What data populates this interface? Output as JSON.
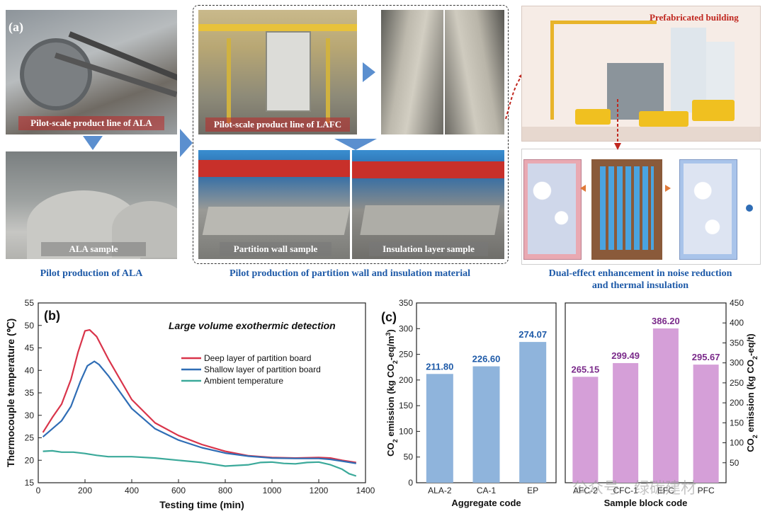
{
  "panel_a": {
    "tag": "(a)",
    "labels": {
      "ala_line": "Pilot-scale product line of ALA",
      "ala_sample": "ALA sample",
      "lafc_line": "Pilot-scale product line of LAFC",
      "partition_sample": "Partition wall sample",
      "insulation_sample": "Insulation layer sample",
      "prefab": "Prefabricated building"
    },
    "captions": {
      "ala": "Pilot production of ALA",
      "partition": "Pilot production of partition wall and insulation material",
      "dual_1": "Dual-effect enhancement in noise reduction",
      "dual_2": "and thermal insulation"
    }
  },
  "watermark": "公众号 · 绿碳建材",
  "chart_data": [
    {
      "type": "line",
      "tag": "(b)",
      "title": "Large volume exothermic detection",
      "xlabel": "Testing time (min)",
      "ylabel": "Thermocouple temperature (℃)",
      "xlim": [
        0,
        1400
      ],
      "ylim": [
        15,
        55
      ],
      "xticks": [
        0,
        200,
        400,
        600,
        800,
        1000,
        1200,
        1400
      ],
      "yticks": [
        15,
        20,
        25,
        30,
        35,
        40,
        45,
        50,
        55
      ],
      "legend": "upper-right",
      "series": [
        {
          "name": "Deep layer of partition board",
          "color": "#d9344a",
          "x": [
            20,
            60,
            100,
            140,
            170,
            200,
            220,
            250,
            300,
            400,
            500,
            600,
            700,
            800,
            900,
            1000,
            1100,
            1200,
            1250,
            1300,
            1360
          ],
          "y": [
            26.2,
            29.5,
            32.5,
            38,
            44,
            48.8,
            49,
            47.5,
            42.5,
            33.5,
            28.3,
            25.5,
            23.5,
            22,
            21,
            20.6,
            20.5,
            20.6,
            20.5,
            20,
            19.5
          ]
        },
        {
          "name": "Shallow layer of partition board",
          "color": "#2f6db5",
          "x": [
            20,
            60,
            100,
            140,
            180,
            210,
            240,
            260,
            300,
            400,
            500,
            600,
            700,
            800,
            900,
            1000,
            1100,
            1200,
            1250,
            1300,
            1360
          ],
          "y": [
            25.2,
            27,
            28.8,
            32,
            37.5,
            41,
            42,
            41.3,
            38.8,
            31.5,
            27,
            24.5,
            22.8,
            21.6,
            20.9,
            20.5,
            20.4,
            20.4,
            20.2,
            19.8,
            19.3
          ]
        },
        {
          "name": "Ambient temperature",
          "color": "#3ba99a",
          "x": [
            20,
            60,
            100,
            150,
            200,
            250,
            300,
            400,
            500,
            600,
            700,
            800,
            900,
            950,
            1000,
            1050,
            1100,
            1150,
            1200,
            1250,
            1300,
            1330,
            1360
          ],
          "y": [
            22,
            22.1,
            21.8,
            21.8,
            21.5,
            21.1,
            20.8,
            20.8,
            20.5,
            20,
            19.5,
            18.7,
            19,
            19.5,
            19.6,
            19.3,
            19.2,
            19.5,
            19.6,
            19,
            18,
            17,
            16.5
          ]
        }
      ]
    },
    {
      "type": "bar",
      "tag": "(c)",
      "xlabel": "Aggregate code",
      "ylabel": "CO2 emission (kg CO2-eq/m3)",
      "ylim": [
        0,
        350
      ],
      "yticks": [
        0,
        50,
        100,
        150,
        200,
        250,
        300,
        350
      ],
      "categories": [
        "ALA-2",
        "CA-1",
        "EP"
      ],
      "values": [
        211.8,
        226.6,
        274.07
      ],
      "labels": [
        "211.80",
        "226.60",
        "274.07"
      ],
      "color": "#8fb4dc",
      "label_color": "#1e5aa8"
    },
    {
      "type": "bar",
      "xlabel": "Sample block code",
      "ylabel": "CO2 emission (kg CO2-eq/t)",
      "ylim": [
        0,
        450
      ],
      "yticks": [
        50,
        100,
        150,
        200,
        250,
        300,
        350,
        400,
        450
      ],
      "categories": [
        "AFC-2",
        "CFC-1",
        "EFC",
        "PFC"
      ],
      "values": [
        265.15,
        299.49,
        386.2,
        295.67
      ],
      "labels": [
        "265.15",
        "299.49",
        "386.20",
        "295.67"
      ],
      "color": "#d59fd8",
      "label_color": "#7a2a8a"
    }
  ]
}
